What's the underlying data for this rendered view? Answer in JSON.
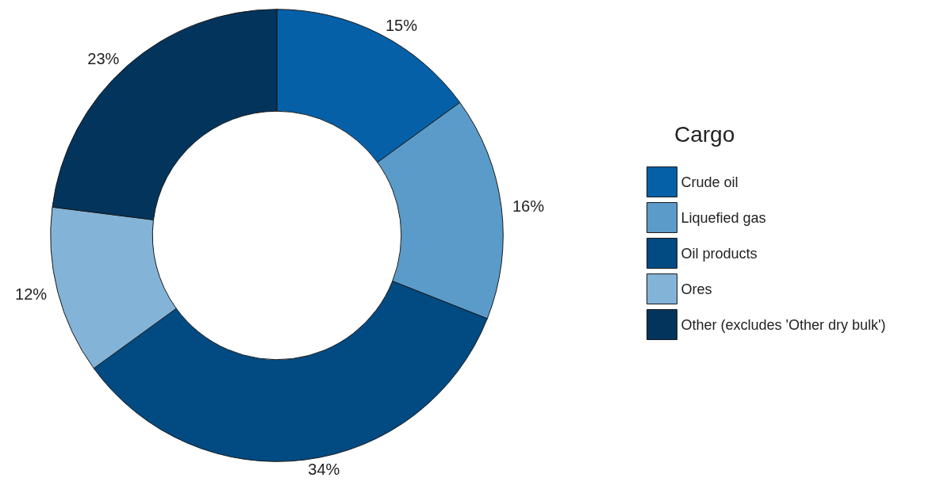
{
  "chart_data": {
    "type": "donut",
    "legend_title": "Cargo",
    "legend": "right",
    "categories": [
      "Crude oil",
      "Liquefied gas",
      "Oil products",
      "Ores",
      "Other (excludes 'Other dry bulk')"
    ],
    "values": [
      15,
      16,
      34,
      12,
      23
    ],
    "colors": [
      "#0560a8",
      "#5a9bc9",
      "#024a82",
      "#84b3d8",
      "#03345c"
    ],
    "value_labels": [
      "15%",
      "16%",
      "34%",
      "12%",
      "23%"
    ]
  }
}
